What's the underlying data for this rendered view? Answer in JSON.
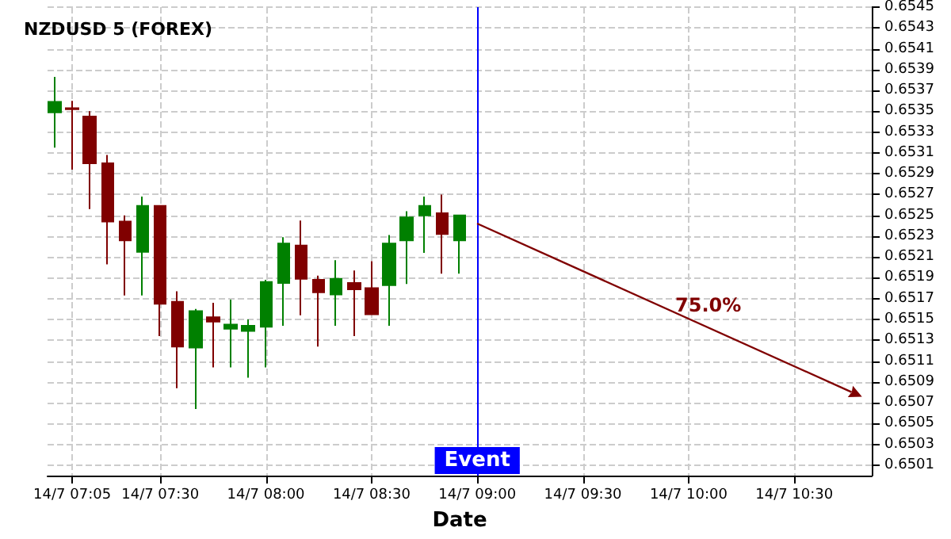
{
  "chart_data": {
    "type": "candlestick",
    "title": "NZDUSD 5 (FOREX)",
    "xlabel": "Date",
    "x": [
      "--07-14T07:00",
      "--07-14T07:05",
      "--07-14T07:10",
      "--07-14T07:15",
      "--07-14T07:20",
      "--07-14T07:25",
      "--07-14T07:30",
      "--07-14T07:35",
      "--07-14T07:40",
      "--07-14T07:45",
      "--07-14T07:50",
      "--07-14T07:55",
      "--07-14T08:00",
      "--07-14T08:05",
      "--07-14T08:10",
      "--07-14T08:15",
      "--07-14T08:20",
      "--07-14T08:25",
      "--07-14T08:30",
      "--07-14T08:35",
      "--07-14T08:40",
      "--07-14T08:45",
      "--07-14T08:50",
      "--07-14T08:55"
    ],
    "ohlc": [
      [
        0.65349,
        0.65383,
        0.65315,
        0.65359
      ],
      [
        0.65353,
        0.6536,
        0.65294,
        0.65352
      ],
      [
        0.65345,
        0.6535,
        0.65256,
        0.653
      ],
      [
        0.653,
        0.65308,
        0.65203,
        0.65244
      ],
      [
        0.65244,
        0.6525,
        0.65173,
        0.65226
      ],
      [
        0.65215,
        0.65268,
        0.65173,
        0.65259
      ],
      [
        0.65259,
        0.65259,
        0.65134,
        0.65165
      ],
      [
        0.65167,
        0.65177,
        0.65084,
        0.65124
      ],
      [
        0.65123,
        0.6516,
        0.65064,
        0.65158
      ],
      [
        0.65152,
        0.65166,
        0.65104,
        0.65148
      ],
      [
        0.65141,
        0.65169,
        0.65104,
        0.65145
      ],
      [
        0.65139,
        0.6515,
        0.65094,
        0.65144
      ],
      [
        0.65143,
        0.65188,
        0.65104,
        0.65186
      ],
      [
        0.65185,
        0.65229,
        0.65144,
        0.65223
      ],
      [
        0.65221,
        0.65245,
        0.65154,
        0.65189
      ],
      [
        0.65188,
        0.65192,
        0.65124,
        0.65176
      ],
      [
        0.65174,
        0.65207,
        0.65144,
        0.65189
      ],
      [
        0.65185,
        0.65197,
        0.65134,
        0.65179
      ],
      [
        0.6518,
        0.65206,
        0.65155,
        0.65155
      ],
      [
        0.65183,
        0.65231,
        0.65144,
        0.65223
      ],
      [
        0.65226,
        0.65254,
        0.65184,
        0.65248
      ],
      [
        0.6525,
        0.65268,
        0.65214,
        0.65259
      ],
      [
        0.65252,
        0.6527,
        0.65194,
        0.65232
      ],
      [
        0.65226,
        0.6525,
        0.65194,
        0.6525
      ]
    ],
    "colors": [
      "#008000",
      "#800000",
      "#800000",
      "#800000",
      "#800000",
      "#008000",
      "#800000",
      "#800000",
      "#008000",
      "#800000",
      "#008000",
      "#008000",
      "#008000",
      "#008000",
      "#800000",
      "#800000",
      "#008000",
      "#800000",
      "#800000",
      "#008000",
      "#008000",
      "#008000",
      "#800000",
      "#008000"
    ],
    "annotations": [
      "75.0%"
    ],
    "ref_lines": [
      {
        "axis": "x",
        "value": "--07-14T09:00",
        "label": "Event",
        "color": "#0000ff"
      }
    ],
    "xlim": [
      "--07-14T06:58",
      "--07-14T10:52"
    ],
    "ylim": [
      0.65,
      0.6545
    ],
    "xticks": [
      {
        "value": "--07-14T07:05",
        "label": "14/7 07:05"
      },
      {
        "value": "--07-14T07:30",
        "label": "14/7 07:30"
      },
      {
        "value": "--07-14T08:00",
        "label": "14/7 08:00"
      },
      {
        "value": "--07-14T08:30",
        "label": "14/7 08:30"
      },
      {
        "value": "--07-14T09:00",
        "label": "14/7 09:00"
      },
      {
        "value": "--07-14T09:30",
        "label": "14/7 09:30"
      },
      {
        "value": "--07-14T10:00",
        "label": "14/7 10:00"
      },
      {
        "value": "--07-14T10:30",
        "label": "14/7 10:30"
      }
    ],
    "yticks": [
      0.6501,
      0.6503,
      0.6505,
      0.6507,
      0.6509,
      0.6511,
      0.6513,
      0.6515,
      0.6517,
      0.6519,
      0.6521,
      0.6523,
      0.6525,
      0.6527,
      0.6529,
      0.6531,
      0.6533,
      0.6535,
      0.6537,
      0.6539,
      0.6541,
      0.6543,
      0.6545
    ],
    "grid": true
  }
}
